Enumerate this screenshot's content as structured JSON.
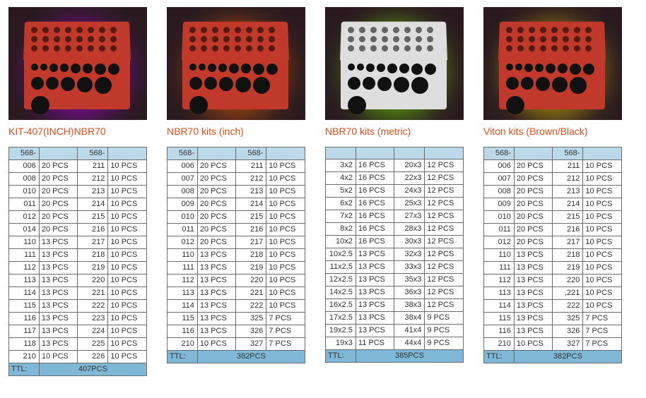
{
  "kits": [
    {
      "title": "KIT-407(INCH)NBR70",
      "case_color": "#c0392b",
      "glow_color": "#c400ff",
      "header": [
        "568-",
        "",
        "568-",
        ""
      ],
      "rows": [
        [
          "006",
          "20 PCS",
          "211",
          "10 PCS"
        ],
        [
          "008",
          "20 PCS",
          "212",
          "10 PCS"
        ],
        [
          "010",
          "20 PCS",
          "213",
          "10 PCS"
        ],
        [
          "011",
          "20 PCS",
          "214",
          "10 PCS"
        ],
        [
          "012",
          "20 PCS",
          "215",
          "10 PCS"
        ],
        [
          "014",
          "20 PCS",
          "216",
          "10 PCS"
        ],
        [
          "110",
          "13 PCS",
          "217",
          "10 PCS"
        ],
        [
          "111",
          "13 PCS",
          "218",
          "10 PCS"
        ],
        [
          "112",
          "13 PCS",
          "219",
          "10 PCS"
        ],
        [
          "113",
          "13 PCS",
          "220",
          "10 PCS"
        ],
        [
          "114",
          "13 PCS",
          "221",
          "10 PCS"
        ],
        [
          "115",
          "13 PCS",
          "222",
          "10 PCS"
        ],
        [
          "116",
          "13 PCS",
          "223",
          "10 PCS"
        ],
        [
          "117",
          "13 PCS",
          "224",
          "10 PCS"
        ],
        [
          "118",
          "13 PCS",
          "225",
          "10 PCS"
        ],
        [
          "210",
          "10 PCS",
          "226",
          "10 PCS"
        ]
      ],
      "ttl_label": "TTL:",
      "ttl_value": "407PCS"
    },
    {
      "title": "NBR70 kits (inch)",
      "case_color": "#c0392b",
      "glow_color": "#ff6a00",
      "header": [
        "568-",
        "",
        "568-",
        ""
      ],
      "rows": [
        [
          "006",
          "20 PCS",
          "211",
          "10 PCS"
        ],
        [
          "007",
          "20 PCS",
          "212",
          "10 PCS"
        ],
        [
          "008",
          "20 PCS",
          "213",
          "10 PCS"
        ],
        [
          "009",
          "20 PCS",
          "214",
          "10 PCS"
        ],
        [
          "010",
          "20 PCS",
          "215",
          "10 PCS"
        ],
        [
          "011",
          "20 PCS",
          "216",
          "10 PCS"
        ],
        [
          "012",
          "20 PCS",
          "217",
          "10 PCS"
        ],
        [
          "110",
          "13 PCS",
          "218",
          "10 PCS"
        ],
        [
          "111",
          "13 PCS",
          "219",
          "10 PCS"
        ],
        [
          "112",
          "13 PCS",
          "220",
          "10 PCS"
        ],
        [
          "113",
          "13 PCS",
          "221",
          "10 PCS"
        ],
        [
          "114",
          "13 PCS",
          "222",
          "10 PCS"
        ],
        [
          "115",
          "13 PCS",
          "325",
          "7 PCS"
        ],
        [
          "116",
          "13 PCS",
          "326",
          "7 PCS"
        ],
        [
          "210",
          "10 PCS",
          "327",
          "7 PCS"
        ]
      ],
      "ttl_label": "TTL:",
      "ttl_value": "382PCS"
    },
    {
      "title": "NBR70 kits (metric)",
      "case_color": "#dedede",
      "glow_color": "#7fff00",
      "header": [
        "",
        "",
        "",
        ""
      ],
      "rows": [
        [
          "3x2",
          "16 PCS",
          "20x3",
          "12 PCS"
        ],
        [
          "4x2",
          "16 PCS",
          "22x3",
          "12 PCS"
        ],
        [
          "5x2",
          "16 PCS",
          "24x3",
          "12 PCS"
        ],
        [
          "6x2",
          "16 PCS",
          "25x3",
          "12 PCS"
        ],
        [
          "7x2",
          "16 PCS",
          "27x3",
          "12 PCS"
        ],
        [
          "8x2",
          "16 PCS",
          "28x3",
          "12 PCS"
        ],
        [
          "10x2",
          "16 PCS",
          "30x3",
          "12 PCS"
        ],
        [
          "10x2.5",
          "13 PCS",
          "32x3",
          "12 PCS"
        ],
        [
          "11x2.5",
          "13 PCS",
          "33x3",
          "12 PCS"
        ],
        [
          "12x2.5",
          "13 PCS",
          "35x3",
          "12 PCS"
        ],
        [
          "14x2.5",
          "13 PCS",
          "36x3",
          "12 PCS"
        ],
        [
          "16x2.5",
          "13 PCS",
          "38x3",
          "12 PCS"
        ],
        [
          "17x2.5",
          "13 PCS",
          "38x4",
          "9 PCS"
        ],
        [
          "19x2.5",
          "13 PCS",
          "41x4",
          "9 PCS"
        ],
        [
          "19x3",
          "11 PCS",
          "44x4",
          "9 PCS"
        ]
      ],
      "ttl_label": "TTL:",
      "ttl_value": "385PCS"
    },
    {
      "title": "Viton kits (Brown/Black)",
      "case_color": "#c0392b",
      "glow_color": "#ffd700",
      "header": [
        "568-",
        "",
        "568-",
        ""
      ],
      "rows": [
        [
          "006",
          "20 PCS",
          "211",
          "10 PCS"
        ],
        [
          "007",
          "20 PCS",
          "212",
          "10 PCS"
        ],
        [
          "008",
          "20 PCS",
          "213",
          "10 PCS"
        ],
        [
          "009",
          "20 PCS",
          "214",
          "10 PCS"
        ],
        [
          "010",
          "20 PCS",
          "215",
          "10 PCS"
        ],
        [
          "011",
          "20 PCS",
          "216",
          "10 PCS"
        ],
        [
          "012",
          "20 PCS",
          "217",
          "10 PCS"
        ],
        [
          "110",
          "13 PCS",
          "218",
          "10 PCS"
        ],
        [
          "111",
          "13 PCS",
          "219",
          "10 PCS"
        ],
        [
          "112",
          "13 PCS",
          "220",
          "10 PCS"
        ],
        [
          "113",
          "13 PCS",
          ",221",
          "10 PCS"
        ],
        [
          "114",
          "13 PCS",
          "222",
          "10 PCS"
        ],
        [
          "115",
          "13 PCS",
          "325",
          "7 PCS"
        ],
        [
          "116",
          "13 PCS",
          "326",
          "7 PCS"
        ],
        [
          "210",
          "10 PCS",
          "327",
          "7 PCS"
        ]
      ],
      "ttl_label": "TTL:",
      "ttl_value": "382PCS"
    }
  ]
}
